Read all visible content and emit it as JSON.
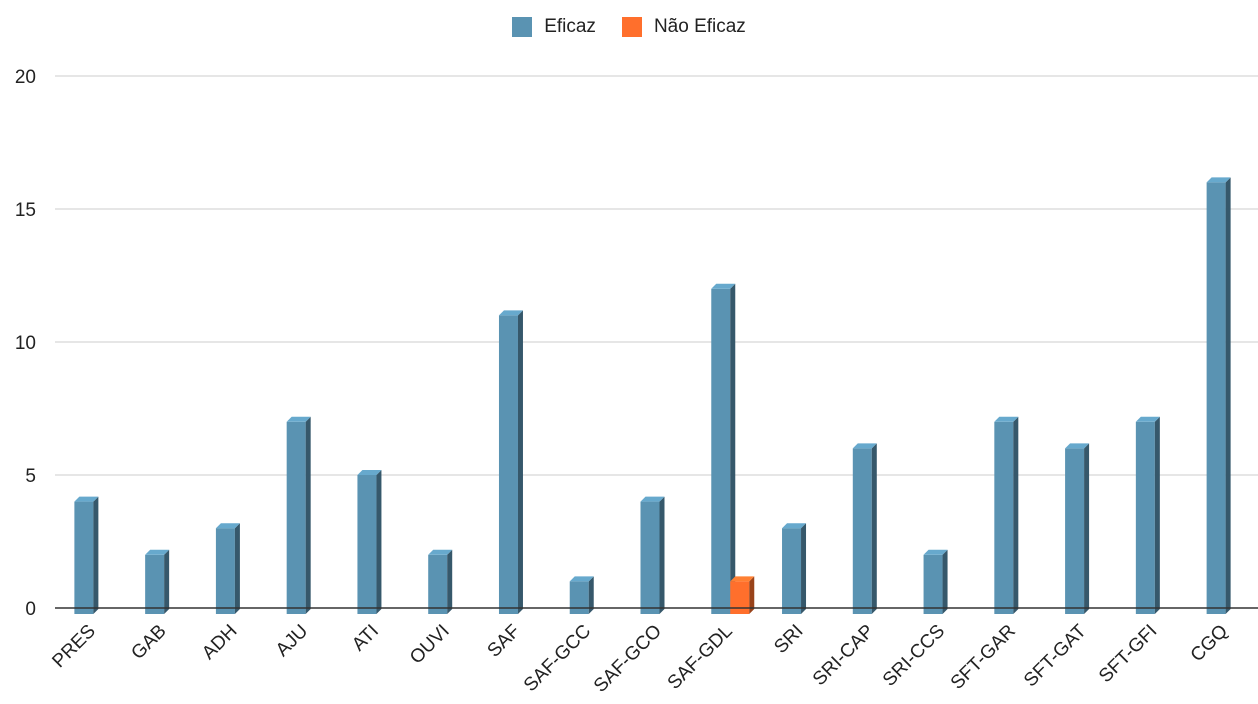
{
  "chart_data": {
    "type": "bar",
    "categories": [
      "PRES",
      "GAB",
      "ADH",
      "AJU",
      "ATI",
      "OUVI",
      "SAF",
      "SAF-GCC",
      "SAF-GCO",
      "SAF-GDL",
      "SRI",
      "SRI-CAP",
      "SRI-CCS",
      "SFT-GAR",
      "SFT-GAT",
      "SFT-GFI",
      "CGQ"
    ],
    "series": [
      {
        "name": "Eficaz",
        "color": "#5a93b2",
        "values": [
          4,
          2,
          3,
          7,
          5,
          2,
          11,
          1,
          4,
          12,
          3,
          6,
          2,
          7,
          6,
          7,
          16
        ]
      },
      {
        "name": "Não Eficaz",
        "color": "#ff6f2c",
        "values": [
          0,
          0,
          0,
          0,
          0,
          0,
          0,
          0,
          0,
          1,
          0,
          0,
          0,
          0,
          0,
          0,
          0
        ]
      }
    ],
    "ylim": [
      0,
      20
    ],
    "yticks": [
      0,
      5,
      10,
      15,
      20
    ],
    "grid": true,
    "legend": "top-center",
    "title": "",
    "xlabel": "",
    "ylabel": ""
  }
}
